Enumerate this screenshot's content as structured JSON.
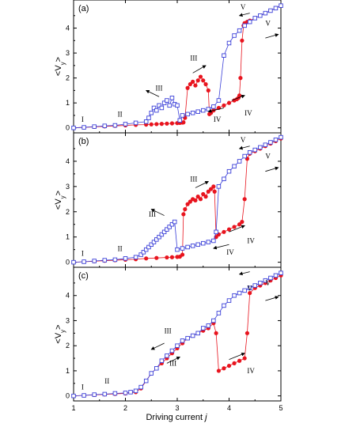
{
  "chart_data": {
    "type": "scatter",
    "xlabel": "Driving current j",
    "ylabel": "<V_y>",
    "xlim": [
      1,
      5
    ],
    "ylim": [
      -0.2,
      5.0
    ],
    "x_ticks": [
      "1",
      "2",
      "3",
      "4",
      "5"
    ],
    "y_ticks": [
      "0",
      "1",
      "2",
      "3",
      "4"
    ],
    "colors": {
      "filled": "#e8141e",
      "open": "#3a3fd8"
    },
    "panels": [
      {
        "label": "(a)",
        "series": [
          {
            "marker": "filled-circle",
            "x": [
              1.0,
              1.2,
              1.4,
              1.6,
              1.8,
              2.0,
              2.2,
              2.4,
              2.5,
              2.6,
              2.7,
              2.8,
              2.9,
              3.0,
              3.05,
              3.1,
              3.12,
              3.15,
              3.2,
              3.25,
              3.3,
              3.35,
              3.4,
              3.45,
              3.5,
              3.55,
              3.6,
              3.62,
              3.65,
              3.7,
              3.8,
              3.9,
              4.0,
              4.1,
              4.15,
              4.18,
              4.2,
              4.22,
              4.25,
              4.28,
              4.3,
              4.35,
              4.4,
              4.5,
              4.6,
              4.7,
              4.8,
              4.9,
              5.0
            ],
            "y": [
              0.0,
              0.02,
              0.04,
              0.06,
              0.08,
              0.1,
              0.12,
              0.13,
              0.14,
              0.15,
              0.16,
              0.17,
              0.18,
              0.19,
              0.2,
              0.21,
              0.22,
              0.4,
              1.6,
              1.75,
              1.85,
              1.7,
              1.9,
              2.05,
              1.9,
              1.75,
              1.5,
              0.55,
              0.6,
              0.7,
              0.8,
              0.9,
              1.0,
              1.1,
              1.15,
              1.2,
              1.3,
              2.0,
              3.5,
              4.1,
              4.2,
              4.25,
              4.3,
              4.4,
              4.5,
              4.6,
              4.7,
              4.8,
              4.9
            ]
          },
          {
            "marker": "open-square",
            "x": [
              1.0,
              1.2,
              1.4,
              1.6,
              1.8,
              2.0,
              2.2,
              2.4,
              2.45,
              2.5,
              2.55,
              2.6,
              2.65,
              2.7,
              2.75,
              2.8,
              2.85,
              2.9,
              2.95,
              3.0,
              3.05,
              3.1,
              3.2,
              3.3,
              3.4,
              3.5,
              3.6,
              3.7,
              3.8,
              3.9,
              4.0,
              4.1,
              4.2,
              4.3,
              4.4,
              4.5,
              4.6,
              4.7,
              4.8,
              4.9,
              5.0
            ],
            "y": [
              0.0,
              0.02,
              0.05,
              0.08,
              0.1,
              0.15,
              0.2,
              0.25,
              0.4,
              0.6,
              0.8,
              0.7,
              0.9,
              0.8,
              1.0,
              1.1,
              0.9,
              1.2,
              0.95,
              0.9,
              0.3,
              0.5,
              0.55,
              0.6,
              0.65,
              0.7,
              0.75,
              0.85,
              1.1,
              2.9,
              3.4,
              3.7,
              3.9,
              4.1,
              4.25,
              4.4,
              4.5,
              4.6,
              4.7,
              4.8,
              4.9
            ]
          }
        ],
        "annotations": [
          "I",
          "II",
          "III",
          "III",
          "IV",
          "IV",
          "V",
          "V"
        ]
      },
      {
        "label": "(b)",
        "series": [
          {
            "marker": "filled-circle",
            "x": [
              1.0,
              1.2,
              1.4,
              1.6,
              1.8,
              2.0,
              2.2,
              2.4,
              2.6,
              2.8,
              2.9,
              3.0,
              3.05,
              3.1,
              3.12,
              3.15,
              3.2,
              3.25,
              3.3,
              3.35,
              3.4,
              3.45,
              3.5,
              3.55,
              3.6,
              3.65,
              3.7,
              3.72,
              3.75,
              3.8,
              3.9,
              4.0,
              4.1,
              4.2,
              4.25,
              4.3,
              4.35,
              4.4,
              4.5,
              4.6,
              4.7,
              4.8,
              4.9,
              5.0
            ],
            "y": [
              0.0,
              0.02,
              0.04,
              0.06,
              0.08,
              0.1,
              0.12,
              0.15,
              0.17,
              0.19,
              0.2,
              0.21,
              0.22,
              0.3,
              1.9,
              2.1,
              2.3,
              2.4,
              2.5,
              2.45,
              2.6,
              2.5,
              2.7,
              2.6,
              2.8,
              2.9,
              3.0,
              2.8,
              1.0,
              1.1,
              1.2,
              1.3,
              1.4,
              1.5,
              1.6,
              2.5,
              4.1,
              4.3,
              4.4,
              4.5,
              4.6,
              4.7,
              4.8,
              4.9
            ]
          },
          {
            "marker": "open-square",
            "x": [
              1.0,
              1.2,
              1.4,
              1.6,
              1.8,
              2.0,
              2.2,
              2.3,
              2.35,
              2.4,
              2.45,
              2.5,
              2.55,
              2.6,
              2.65,
              2.7,
              2.75,
              2.8,
              2.85,
              2.9,
              2.95,
              3.0,
              3.1,
              3.2,
              3.3,
              3.4,
              3.5,
              3.6,
              3.7,
              3.75,
              3.8,
              3.9,
              4.0,
              4.1,
              4.2,
              4.3,
              4.4,
              4.5,
              4.6,
              4.7,
              4.8,
              4.9,
              5.0
            ],
            "y": [
              0.0,
              0.02,
              0.05,
              0.08,
              0.1,
              0.15,
              0.2,
              0.3,
              0.4,
              0.5,
              0.6,
              0.7,
              0.8,
              0.9,
              1.0,
              1.1,
              1.2,
              1.3,
              1.4,
              1.5,
              1.6,
              0.5,
              0.55,
              0.6,
              0.65,
              0.7,
              0.75,
              0.8,
              0.85,
              1.2,
              3.0,
              3.3,
              3.6,
              3.8,
              4.0,
              4.2,
              4.35,
              4.45,
              4.55,
              4.65,
              4.75,
              4.85,
              4.95
            ]
          }
        ],
        "annotations": [
          "I",
          "II",
          "III",
          "III",
          "IV",
          "IV",
          "V",
          "V"
        ]
      },
      {
        "label": "(c)",
        "series": [
          {
            "marker": "filled-circle",
            "x": [
              1.0,
              1.2,
              1.4,
              1.6,
              1.8,
              2.0,
              2.2,
              2.3,
              2.4,
              2.5,
              2.6,
              2.7,
              2.8,
              2.9,
              3.0,
              3.1,
              3.2,
              3.3,
              3.4,
              3.5,
              3.6,
              3.7,
              3.75,
              3.8,
              3.9,
              4.0,
              4.1,
              4.2,
              4.3,
              4.35,
              4.4,
              4.5,
              4.6,
              4.7,
              4.8,
              4.9,
              5.0
            ],
            "y": [
              0.0,
              0.02,
              0.04,
              0.06,
              0.08,
              0.1,
              0.15,
              0.3,
              0.6,
              0.9,
              1.1,
              1.3,
              1.5,
              1.7,
              1.9,
              2.1,
              2.3,
              2.4,
              2.5,
              2.6,
              2.7,
              2.9,
              2.5,
              1.0,
              1.1,
              1.2,
              1.3,
              1.4,
              1.5,
              2.5,
              4.1,
              4.3,
              4.4,
              4.5,
              4.6,
              4.7,
              4.8
            ]
          },
          {
            "marker": "open-square",
            "x": [
              1.0,
              1.2,
              1.4,
              1.6,
              1.8,
              2.0,
              2.1,
              2.2,
              2.3,
              2.4,
              2.5,
              2.6,
              2.7,
              2.8,
              2.9,
              3.0,
              3.1,
              3.2,
              3.3,
              3.4,
              3.5,
              3.6,
              3.7,
              3.8,
              3.9,
              4.0,
              4.1,
              4.2,
              4.3,
              4.4,
              4.5,
              4.6,
              4.7,
              4.8,
              4.9,
              5.0
            ],
            "y": [
              0.0,
              0.02,
              0.05,
              0.07,
              0.1,
              0.12,
              0.15,
              0.2,
              0.35,
              0.6,
              0.9,
              1.1,
              1.4,
              1.6,
              1.8,
              2.0,
              2.2,
              2.3,
              2.4,
              2.5,
              2.7,
              2.8,
              3.0,
              3.3,
              3.6,
              3.8,
              4.0,
              4.1,
              4.2,
              4.3,
              4.4,
              4.5,
              4.6,
              4.7,
              4.8,
              4.9
            ]
          }
        ],
        "annotations": [
          "I",
          "II",
          "III",
          "III",
          "IV",
          "IV",
          "V",
          "V"
        ]
      }
    ]
  }
}
